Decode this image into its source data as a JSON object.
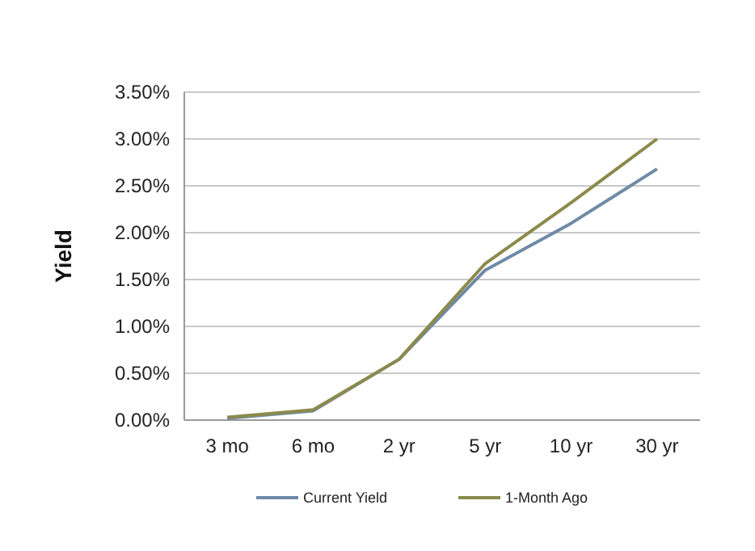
{
  "chart_data": {
    "type": "line",
    "ylabel": "Yield",
    "categories": [
      "3 mo",
      "6 mo",
      "2 yr",
      "5 yr",
      "10 yr",
      "30 yr"
    ],
    "series": [
      {
        "name": "Current Yield",
        "color": "#6f8aa6",
        "values": [
          0.02,
          0.1,
          0.65,
          1.6,
          2.1,
          2.68
        ]
      },
      {
        "name": "1-Month Ago",
        "color": "#8c8a4c",
        "values": [
          0.03,
          0.11,
          0.65,
          1.67,
          2.32,
          3.0
        ]
      }
    ],
    "ylim": [
      0,
      3.5
    ],
    "yticks": [
      {
        "value": 0,
        "label": "0.00%"
      },
      {
        "value": 0.5,
        "label": "0.50%"
      },
      {
        "value": 1,
        "label": "1.00%"
      },
      {
        "value": 1.5,
        "label": "1.50%"
      },
      {
        "value": 2,
        "label": "2.00%"
      },
      {
        "value": 2.5,
        "label": "2.50%"
      },
      {
        "value": 3,
        "label": "3.00%"
      },
      {
        "value": 3.5,
        "label": "3.50%"
      }
    ],
    "grid": "y",
    "legend": "bottom",
    "marker": "none",
    "line_style": "solid"
  }
}
